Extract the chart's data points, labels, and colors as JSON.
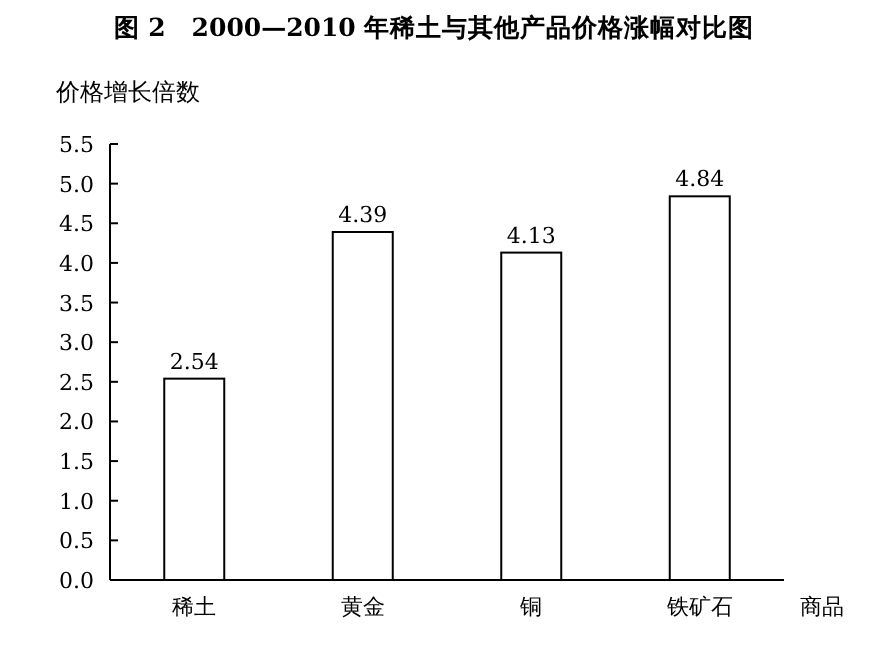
{
  "chart_data": {
    "type": "bar",
    "title": "图 2　2000—2010 年稀土与其他产品价格涨幅对比图",
    "ylabel": "价格增长倍数",
    "xlabel": "商品",
    "categories": [
      "稀土",
      "黄金",
      "铜",
      "铁矿石"
    ],
    "values": [
      2.54,
      4.39,
      4.13,
      4.84
    ],
    "color": "#ffffff",
    "ylim": [
      0,
      5.5
    ],
    "yticks": [
      {
        "value": 0,
        "label": "0.0"
      },
      0.5,
      {
        "value": 1,
        "label": "1.0"
      },
      1.5,
      {
        "value": 2,
        "label": "2.0"
      },
      2.5,
      {
        "value": 3,
        "label": "3.0"
      },
      3.5,
      {
        "value": 4,
        "label": "4.0"
      },
      4.5,
      {
        "value": 5,
        "label": "5.0"
      },
      5.5
    ],
    "data_labels": true
  }
}
